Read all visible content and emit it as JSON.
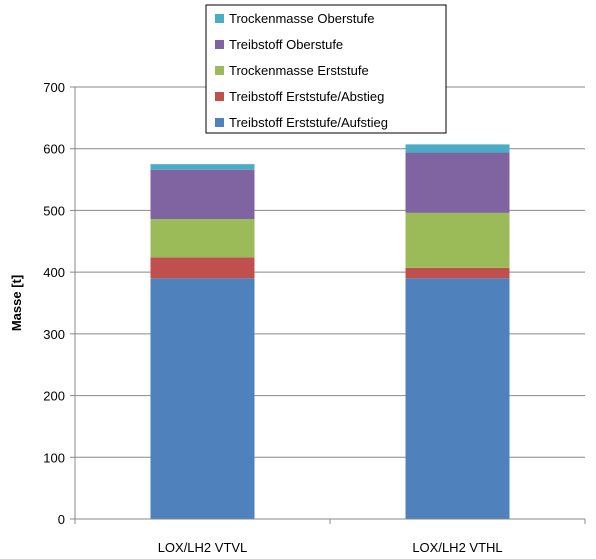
{
  "chart_data": {
    "type": "bar",
    "stacked": true,
    "categories": [
      "LOX/LH2 VTVL",
      "LOX/LH2 VTHL"
    ],
    "series": [
      {
        "name": "Treibstoff Erststufe/Aufstieg",
        "color": "#4F81BD",
        "values": [
          390,
          390
        ]
      },
      {
        "name": "Treibstoff Erststufe/Abstieg",
        "color": "#C0504D",
        "values": [
          34,
          17
        ]
      },
      {
        "name": "Trockenmasse Erststufe",
        "color": "#9BBB59",
        "values": [
          62,
          89
        ]
      },
      {
        "name": "Treibstoff Oberstufe",
        "color": "#8064A2",
        "values": [
          80,
          98
        ]
      },
      {
        "name": "Trockenmasse Oberstufe",
        "color": "#4BACC6",
        "values": [
          9,
          13
        ]
      }
    ],
    "ylabel": "Masse [t]",
    "xlabel": "",
    "ylim": [
      0,
      700
    ],
    "yticks": [
      0,
      100,
      200,
      300,
      400,
      500,
      600,
      700
    ],
    "grid": true,
    "legend_position": "top-center"
  }
}
